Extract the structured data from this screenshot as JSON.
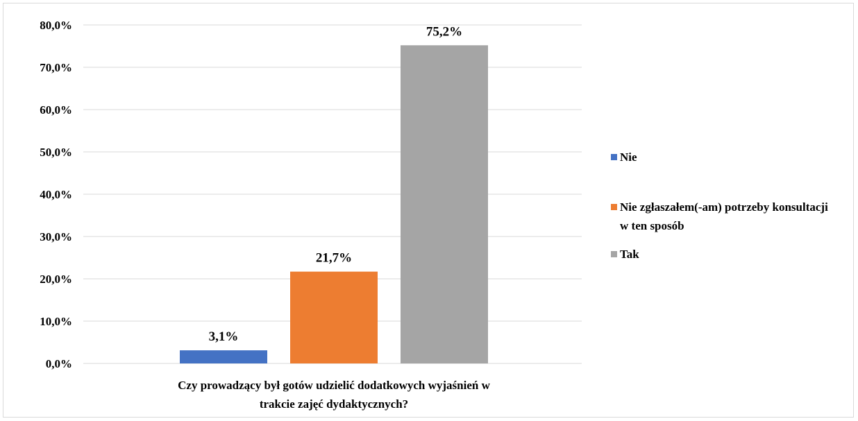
{
  "chart_data": {
    "type": "bar",
    "xlabel": "Czy  prowadzący był gotów udzielić dodatkowych wyjaśnień w trakcie zajęć dydaktycznych?",
    "xlabel_lines": [
      "Czy  prowadzący był gotów udzielić dodatkowych wyjaśnień w",
      "trakcie zajęć dydaktycznych?"
    ],
    "ylabel": "",
    "ylim": [
      0,
      80
    ],
    "y_ticks": [
      "0,0%",
      "10,0%",
      "20,0%",
      "30,0%",
      "40,0%",
      "50,0%",
      "60,0%",
      "70,0%",
      "80,0%"
    ],
    "grid": true,
    "legend_position": "right",
    "series": [
      {
        "name": "Nie",
        "value": 3.1,
        "label": "3,1%",
        "color": "#4472c4"
      },
      {
        "name": "Nie zgłaszałem(-am) potrzeby konsultacji w ten sposób",
        "value": 21.7,
        "label": "21,7%",
        "color": "#ed7d31"
      },
      {
        "name": "Tak",
        "value": 75.2,
        "label": "75,2%",
        "color": "#a5a5a5"
      }
    ]
  },
  "legend": {
    "items": [
      {
        "label": "Nie",
        "color": "#4472c4"
      },
      {
        "label": "Nie zgłaszałem(-am) potrzeby konsultacji w ten sposób",
        "color": "#ed7d31"
      },
      {
        "label": "Tak",
        "color": "#a5a5a5"
      }
    ]
  }
}
